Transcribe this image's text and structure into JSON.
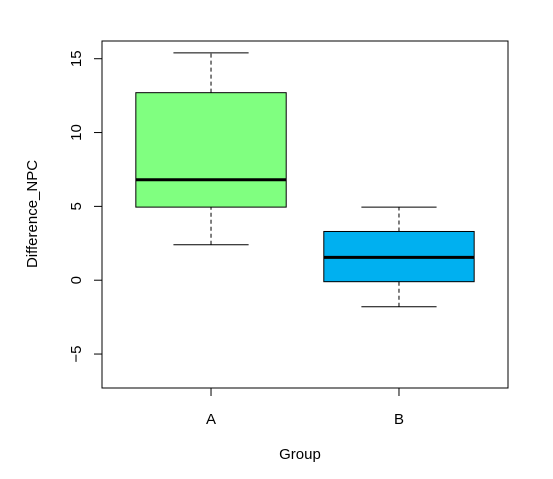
{
  "chart_data": {
    "type": "boxplot",
    "title": "",
    "xlabel": "Group",
    "ylabel": "Difference_NPC",
    "categories": [
      "A",
      "B"
    ],
    "ylim": [
      -7.3,
      16.2
    ],
    "yticks": [
      -5,
      0,
      5,
      10,
      15
    ],
    "ytick_labels": [
      "−5",
      "0",
      "5",
      "10",
      "15"
    ],
    "grid": false,
    "boxes": [
      {
        "category": "A",
        "whisker_low": 2.4,
        "q1": 4.95,
        "median": 6.8,
        "q3": 12.7,
        "whisker_high": 15.4,
        "fill": "#80ff80"
      },
      {
        "category": "B",
        "whisker_low": -1.8,
        "q1": -0.1,
        "median": 1.55,
        "q3": 3.3,
        "whisker_high": 4.95,
        "fill": "#00b0f0"
      }
    ]
  }
}
